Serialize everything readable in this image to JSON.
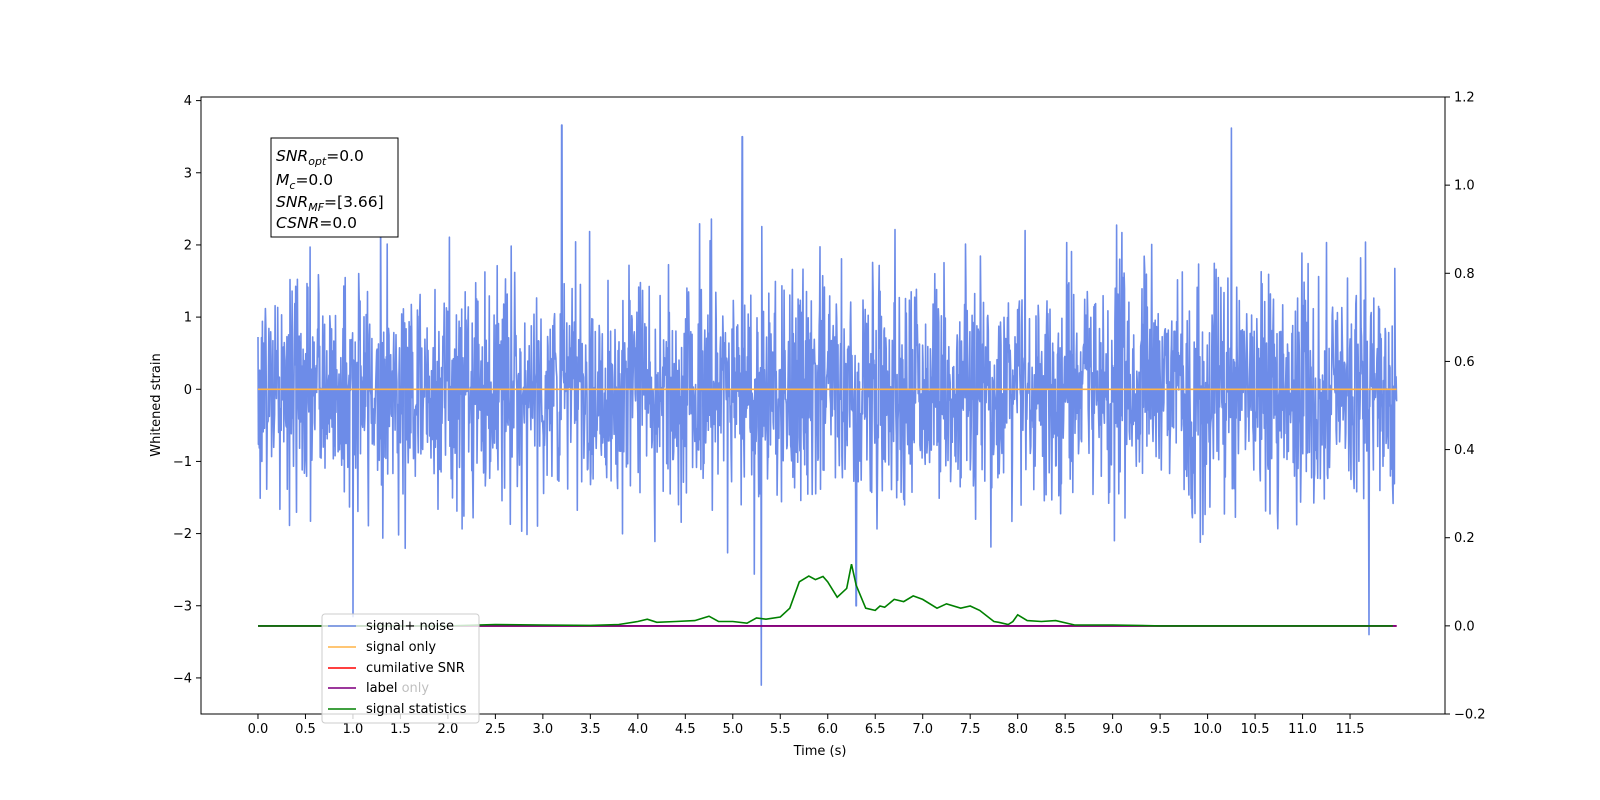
{
  "chart_data": {
    "type": "line",
    "xlabel": "Time (s)",
    "ylabel": "Whitened strain",
    "x_ticks": [
      "0.0",
      "0.5",
      "1.0",
      "1.5",
      "2.0",
      "2.5",
      "3.0",
      "3.5",
      "4.0",
      "4.5",
      "5.0",
      "5.5",
      "6.0",
      "6.5",
      "7.0",
      "7.5",
      "8.0",
      "8.5",
      "9.0",
      "9.5",
      "10.0",
      "10.5",
      "11.0",
      "11.5"
    ],
    "xlim": [
      -0.6,
      12.5
    ],
    "y_ticks": [
      "4",
      "3",
      "2",
      "1",
      "0",
      "−1",
      "−2",
      "−3",
      "−4"
    ],
    "ylim": [
      -4.5,
      4.05
    ],
    "y2_ticks": [
      "1.2",
      "1.0",
      "0.8",
      "0.6",
      "0.4",
      "0.2",
      "0.0",
      "−0.2"
    ],
    "y2lim": [
      -0.2,
      1.2
    ],
    "grid": false,
    "legend_position": "lower-left",
    "colors": {
      "noise": "#6d8ce8",
      "signal": "#ffb347",
      "cumulative": "#ff0000",
      "label": "#800080",
      "stats": "#008000"
    },
    "annotation": {
      "snr_opt_value": "=0.0",
      "mc_value": "=0.0",
      "snr_mf_value": "=[3.66]",
      "csnr_value": "=0.0"
    },
    "series": [
      {
        "name": "signal+ noise",
        "axis": "left",
        "description_values": {
          "x_range": [
            0.0,
            11.99
          ],
          "mean": 0.0,
          "max": 3.66,
          "min": -4.1
        }
      },
      {
        "name": "signal only",
        "axis": "left",
        "x": [
          0.0,
          11.99
        ],
        "values": [
          0.0,
          0.0
        ]
      },
      {
        "name": "cumilative SNR",
        "axis": "right",
        "x": [
          0.0,
          11.99
        ],
        "values": [
          0.0,
          0.0
        ]
      },
      {
        "name": "label only",
        "axis": "right",
        "x": [
          0.0,
          11.99
        ],
        "values": [
          0.0,
          0.0
        ]
      },
      {
        "name": "label",
        "axis": "right",
        "x": [
          0.0,
          11.99
        ],
        "values": [
          0.0,
          0.0
        ]
      },
      {
        "name": "signal statistics",
        "axis": "right",
        "x": [
          0.0,
          2.0,
          2.5,
          3.0,
          3.5,
          3.8,
          4.0,
          4.1,
          4.2,
          4.4,
          4.6,
          4.75,
          4.85,
          5.0,
          5.15,
          5.25,
          5.35,
          5.5,
          5.6,
          5.7,
          5.8,
          5.87,
          5.95,
          6.0,
          6.1,
          6.2,
          6.25,
          6.3,
          6.4,
          6.5,
          6.55,
          6.6,
          6.7,
          6.8,
          6.9,
          7.0,
          7.15,
          7.25,
          7.4,
          7.5,
          7.6,
          7.75,
          7.8,
          7.9,
          7.95,
          8.0,
          8.1,
          8.25,
          8.4,
          8.6,
          9.0,
          9.5,
          10.0,
          11.0,
          11.95
        ],
        "values": [
          0.0,
          0.0,
          0.003,
          0.002,
          0.001,
          0.003,
          0.01,
          0.015,
          0.008,
          0.01,
          0.012,
          0.022,
          0.01,
          0.01,
          0.006,
          0.018,
          0.015,
          0.02,
          0.04,
          0.1,
          0.113,
          0.105,
          0.112,
          0.1,
          0.065,
          0.085,
          0.14,
          0.092,
          0.04,
          0.035,
          0.045,
          0.042,
          0.06,
          0.055,
          0.068,
          0.06,
          0.04,
          0.05,
          0.04,
          0.045,
          0.035,
          0.01,
          0.008,
          0.003,
          0.01,
          0.025,
          0.012,
          0.01,
          0.012,
          0.002,
          0.002,
          0.0,
          0.0,
          0.0,
          0.0
        ]
      }
    ],
    "legend": [
      "signal+ noise",
      "signal only",
      "cumilative SNR",
      "label only",
      "label",
      "signal statistics"
    ]
  }
}
